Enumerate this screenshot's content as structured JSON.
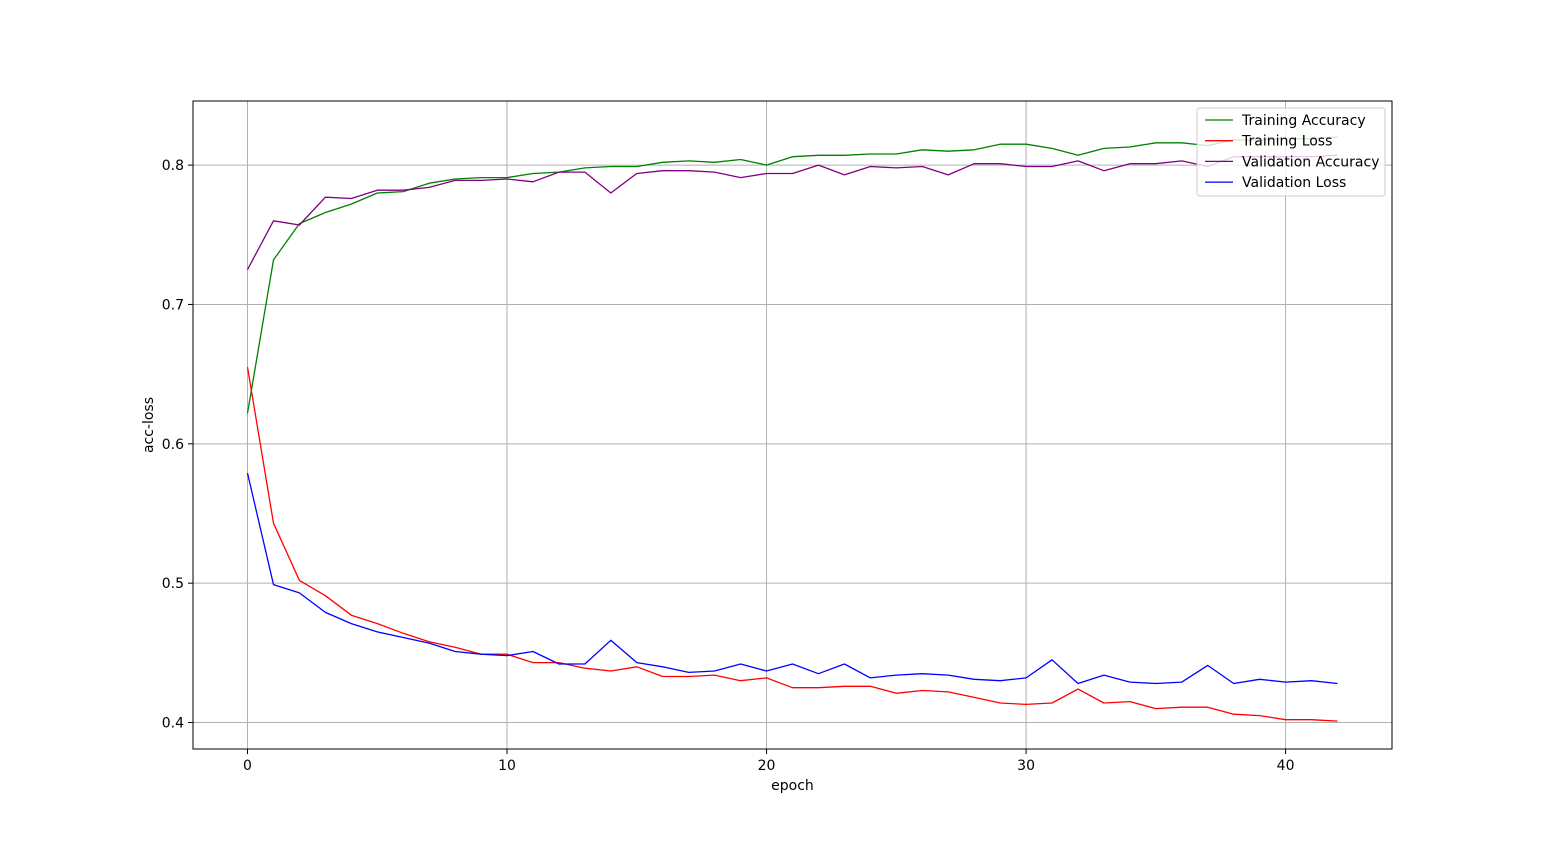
{
  "chart_data": {
    "type": "line",
    "title": "",
    "xlabel": "epoch",
    "ylabel": "acc-loss",
    "xlim": [
      -2.1,
      44.1
    ],
    "ylim": [
      0.381,
      0.846
    ],
    "xticks": [
      0,
      10,
      20,
      30,
      40
    ],
    "yticks": [
      0.4,
      0.5,
      0.6,
      0.7,
      0.8
    ],
    "xtick_labels": [
      "0",
      "10",
      "20",
      "30",
      "40"
    ],
    "ytick_labels": [
      "0.4",
      "0.5",
      "0.6",
      "0.7",
      "0.8"
    ],
    "grid": true,
    "legend_position": "upper right",
    "x": [
      0,
      1,
      2,
      3,
      4,
      5,
      6,
      7,
      8,
      9,
      10,
      11,
      12,
      13,
      14,
      15,
      16,
      17,
      18,
      19,
      20,
      21,
      22,
      23,
      24,
      25,
      26,
      27,
      28,
      29,
      30,
      31,
      32,
      33,
      34,
      35,
      36,
      37,
      38,
      39,
      40,
      41,
      42
    ],
    "series": [
      {
        "name": "Training Accuracy",
        "color": "#008000",
        "values": [
          0.622,
          0.732,
          0.758,
          0.766,
          0.772,
          0.78,
          0.781,
          0.787,
          0.79,
          0.791,
          0.791,
          0.794,
          0.795,
          0.798,
          0.799,
          0.799,
          0.802,
          0.803,
          0.802,
          0.804,
          0.8,
          0.806,
          0.807,
          0.807,
          0.808,
          0.808,
          0.811,
          0.81,
          0.811,
          0.815,
          0.815,
          0.812,
          0.807,
          0.812,
          0.813,
          0.816,
          0.816,
          0.814,
          0.818,
          0.818,
          0.819,
          0.819,
          0.82
        ]
      },
      {
        "name": "Training Loss",
        "color": "#ff0000",
        "values": [
          0.655,
          0.543,
          0.502,
          0.491,
          0.477,
          0.471,
          0.464,
          0.458,
          0.454,
          0.449,
          0.449,
          0.443,
          0.443,
          0.439,
          0.437,
          0.44,
          0.433,
          0.433,
          0.434,
          0.43,
          0.432,
          0.425,
          0.425,
          0.426,
          0.426,
          0.421,
          0.423,
          0.422,
          0.418,
          0.414,
          0.413,
          0.414,
          0.424,
          0.414,
          0.415,
          0.41,
          0.411,
          0.411,
          0.406,
          0.405,
          0.402,
          0.402,
          0.401
        ]
      },
      {
        "name": "Validation Accuracy",
        "color": "#800080",
        "values": [
          0.725,
          0.76,
          0.757,
          0.777,
          0.776,
          0.782,
          0.782,
          0.784,
          0.789,
          0.789,
          0.79,
          0.788,
          0.795,
          0.795,
          0.78,
          0.794,
          0.796,
          0.796,
          0.795,
          0.791,
          0.794,
          0.794,
          0.8,
          0.793,
          0.799,
          0.798,
          0.799,
          0.793,
          0.801,
          0.801,
          0.799,
          0.799,
          0.803,
          0.796,
          0.801,
          0.801,
          0.803,
          0.799,
          0.806,
          0.806,
          0.806,
          0.806,
          0.807
        ]
      },
      {
        "name": "Validation Loss",
        "color": "#0000ff",
        "values": [
          0.579,
          0.499,
          0.493,
          0.479,
          0.471,
          0.465,
          0.461,
          0.457,
          0.451,
          0.449,
          0.448,
          0.451,
          0.442,
          0.442,
          0.459,
          0.443,
          0.44,
          0.436,
          0.437,
          0.442,
          0.437,
          0.442,
          0.435,
          0.442,
          0.432,
          0.434,
          0.435,
          0.434,
          0.431,
          0.43,
          0.432,
          0.445,
          0.428,
          0.434,
          0.429,
          0.428,
          0.429,
          0.441,
          0.428,
          0.431,
          0.429,
          0.43,
          0.428
        ]
      }
    ]
  }
}
